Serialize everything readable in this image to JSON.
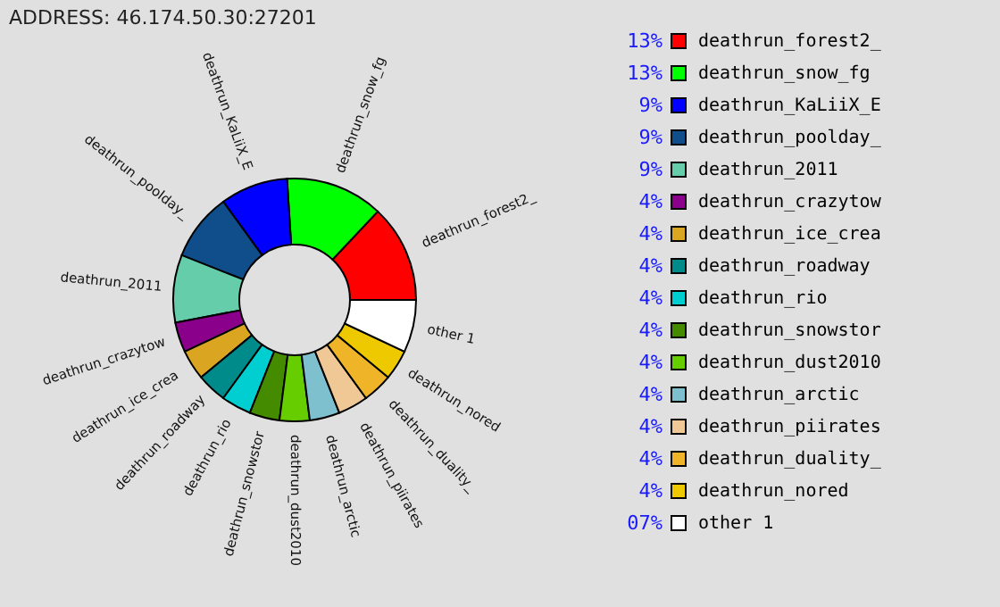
{
  "chart_data": {
    "type": "donut",
    "annotations": [
      "ADDRESS: 46.174.50.30:27201"
    ],
    "categories": [
      "deathrun_forest2_",
      "deathrun_snow_fg",
      "deathrun_KaLiiX_E",
      "deathrun_poolday_",
      "deathrun_2011",
      "deathrun_crazytow",
      "deathrun_ice_crea",
      "deathrun_roadway",
      "deathrun_rio",
      "deathrun_snowstor",
      "deathrun_dust2010",
      "deathrun_arctic",
      "deathrun_piirates",
      "deathrun_duality_",
      "deathrun_nored",
      "other 1"
    ],
    "values": [
      13,
      13,
      9,
      9,
      9,
      4,
      4,
      4,
      4,
      4,
      4,
      4,
      4,
      4,
      4,
      7
    ],
    "value_labels": [
      "13%",
      "13%",
      "9%",
      "9%",
      "9%",
      "4%",
      "4%",
      "4%",
      "4%",
      "4%",
      "4%",
      "4%",
      "4%",
      "4%",
      "4%",
      "07%"
    ],
    "colors": [
      "#ff0000",
      "#00ff00",
      "#0000ff",
      "#104e8b",
      "#66cdaa",
      "#8b008b",
      "#daa520",
      "#008b8b",
      "#00ced1",
      "#458b00",
      "#66cd00",
      "#7ec0ce",
      "#f0c896",
      "#f0b428",
      "#eec900",
      "#ffffff"
    ],
    "legend": "right"
  }
}
